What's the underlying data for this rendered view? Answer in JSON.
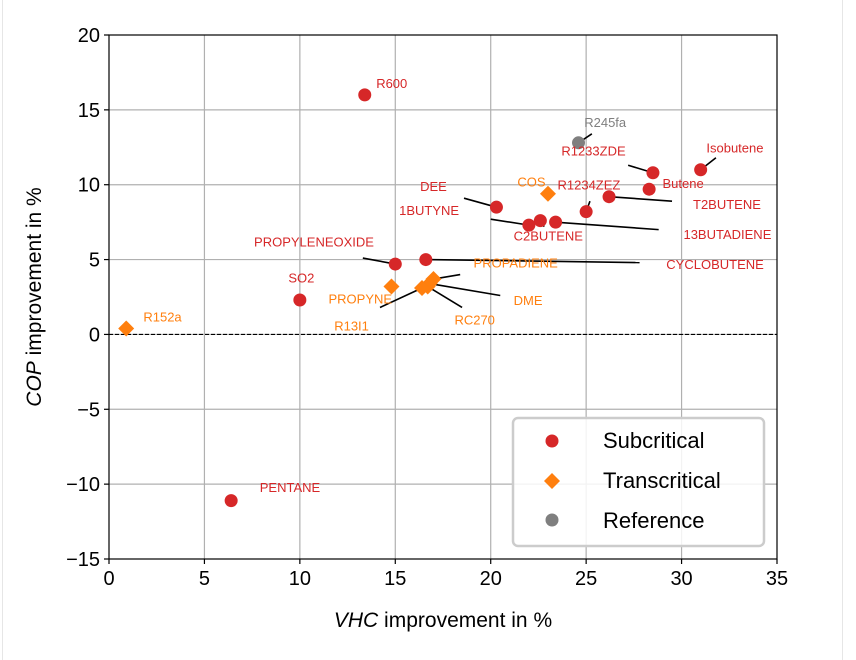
{
  "chart_data": {
    "type": "scatter",
    "title": "",
    "xlabel": {
      "italic": "VHC",
      "rest": " improvement in %"
    },
    "ylabel": {
      "italic": "COP",
      "rest": " improvement in %"
    },
    "xlim": [
      0,
      35
    ],
    "ylim": [
      -15,
      20
    ],
    "xticks": [
      0,
      5,
      10,
      15,
      20,
      25,
      30,
      35
    ],
    "yticks": [
      -15,
      -10,
      -5,
      0,
      5,
      10,
      15,
      20
    ],
    "ytick_labels": [
      "−15",
      "−10",
      "−5",
      "0",
      "5",
      "10",
      "15",
      "20"
    ],
    "xtick_labels": [
      "0",
      "5",
      "10",
      "15",
      "20",
      "25",
      "30",
      "35"
    ],
    "grid": true,
    "zero_line": {
      "y": 0,
      "style": "dashed"
    },
    "legend": {
      "placement": "lower-right",
      "entries": [
        {
          "name": "Subcritical",
          "marker": "circle",
          "color": "#d62728"
        },
        {
          "name": "Transcritical",
          "marker": "diamond",
          "color": "#ff7f0e"
        },
        {
          "name": "Reference",
          "marker": "circle",
          "color": "#7f7f7f"
        }
      ]
    },
    "series": [
      {
        "name": "Subcritical",
        "marker": "circle",
        "color": "#d62728",
        "points": [
          {
            "label": "R600",
            "x": 13.4,
            "y": 16.0,
            "label_x": 14.0,
            "label_y": 16.8,
            "leader": false
          },
          {
            "label": "Isobutene",
            "x": 31.0,
            "y": 11.0,
            "label_x": 31.3,
            "label_y": 12.5,
            "leader": true,
            "leader_x": 31.8,
            "leader_y": 11.8
          },
          {
            "label": "R1233ZDE",
            "x": 28.5,
            "y": 10.8,
            "label_x": 23.7,
            "label_y": 12.3,
            "leader": true,
            "leader_x": 27.2,
            "leader_y": 11.3
          },
          {
            "label": "Butene",
            "x": 28.3,
            "y": 9.7,
            "label_x": 29.0,
            "label_y": 10.1,
            "leader": false
          },
          {
            "label": "T2BUTENE",
            "x": 26.2,
            "y": 9.2,
            "label_x": 30.6,
            "label_y": 8.7,
            "leader": true,
            "leader_x": 29.5,
            "leader_y": 8.9
          },
          {
            "label": "DEE",
            "x": 20.3,
            "y": 8.5,
            "label_x": 16.3,
            "label_y": 9.9,
            "leader": true,
            "leader_x": 18.6,
            "leader_y": 9.1
          },
          {
            "label": "R1234ZEZ",
            "x": 25.0,
            "y": 8.2,
            "label_x": 23.5,
            "label_y": 10.0,
            "leader": true,
            "leader_x": 25.2,
            "leader_y": 8.9
          },
          {
            "label": "13BUTADIENE",
            "x": 23.4,
            "y": 7.5,
            "label_x": 30.1,
            "label_y": 6.7,
            "leader": true,
            "leader_x": 28.8,
            "leader_y": 7.0
          },
          {
            "label": "C2BUTENE",
            "x": 22.6,
            "y": 7.6,
            "label_x": 21.2,
            "label_y": 6.6,
            "leader": true,
            "leader_x": 22.8,
            "leader_y": 7.2
          },
          {
            "label": "1BUTYNE",
            "x": 22.0,
            "y": 7.3,
            "label_x": 15.2,
            "label_y": 8.3,
            "leader": true,
            "leader_x": 20.0,
            "leader_y": 7.7
          },
          {
            "label": "CYCLOBUTENE",
            "x": 16.6,
            "y": 5.0,
            "label_x": 29.2,
            "label_y": 4.7,
            "leader": true,
            "leader_x": 27.8,
            "leader_y": 4.8
          },
          {
            "label": "PROPYLENEOXIDE",
            "x": 15.0,
            "y": 4.7,
            "label_x": 7.6,
            "label_y": 6.2,
            "leader": true,
            "leader_x": 13.3,
            "leader_y": 5.1
          },
          {
            "label": "SO2",
            "x": 10.0,
            "y": 2.3,
            "label_x": 9.4,
            "label_y": 3.8,
            "leader": false
          },
          {
            "label": "PENTANE",
            "x": 6.4,
            "y": -11.1,
            "label_x": 7.9,
            "label_y": -10.2,
            "leader": false
          }
        ]
      },
      {
        "name": "Transcritical",
        "marker": "diamond",
        "color": "#ff7f0e",
        "points": [
          {
            "label": "COS",
            "x": 23.0,
            "y": 9.4,
            "label_x": 21.4,
            "label_y": 10.2,
            "leader": false
          },
          {
            "label": "PROPADIENE",
            "x": 17.0,
            "y": 3.7,
            "label_x": 19.1,
            "label_y": 4.8,
            "leader": true,
            "leader_x": 18.4,
            "leader_y": 4.0
          },
          {
            "label": "DME",
            "x": 16.8,
            "y": 3.4,
            "label_x": 21.2,
            "label_y": 2.3,
            "leader": true,
            "leader_x": 20.5,
            "leader_y": 2.6
          },
          {
            "label": "PROPYNE",
            "x": 14.8,
            "y": 3.2,
            "label_x": 11.5,
            "label_y": 2.4,
            "leader": false
          },
          {
            "label": "RC270",
            "x": 16.7,
            "y": 3.2,
            "label_x": 18.1,
            "label_y": 1.0,
            "leader": true,
            "leader_x": 18.5,
            "leader_y": 1.8
          },
          {
            "label": "R13I1",
            "x": 16.4,
            "y": 3.1,
            "label_x": 11.8,
            "label_y": 0.6,
            "leader": true,
            "leader_x": 14.2,
            "leader_y": 1.8
          },
          {
            "label": "R152a",
            "x": 0.9,
            "y": 0.4,
            "label_x": 1.8,
            "label_y": 1.2,
            "leader": false
          }
        ]
      },
      {
        "name": "Reference",
        "marker": "circle",
        "color": "#7f7f7f",
        "points": [
          {
            "label": "R245fa",
            "x": 24.6,
            "y": 12.8,
            "label_x": 24.9,
            "label_y": 14.2,
            "leader": true,
            "leader_x": 25.3,
            "leader_y": 13.4
          }
        ]
      }
    ]
  }
}
